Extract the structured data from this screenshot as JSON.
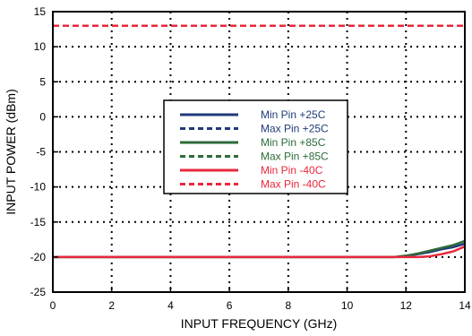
{
  "chart_data": {
    "type": "line",
    "xlabel": "INPUT FREQUENCY (GHz)",
    "ylabel": "INPUT POWER (dBm)",
    "xlim": [
      0,
      14
    ],
    "ylim": [
      -25,
      15
    ],
    "xticks": [
      0,
      2,
      4,
      6,
      8,
      10,
      12,
      14
    ],
    "yticks": [
      -25,
      -20,
      -15,
      -10,
      -5,
      0,
      5,
      10,
      15
    ],
    "grid": true,
    "grid_style": "dotted",
    "legend_position": "center",
    "series": [
      {
        "name": "Min Pin +25C",
        "color": "#1f3a7a",
        "dash": "solid",
        "x": [
          0,
          11.6,
          12.0,
          12.4,
          12.8,
          13.2,
          13.6,
          14.0
        ],
        "y": [
          -20,
          -20,
          -19.9,
          -19.6,
          -19.3,
          -18.9,
          -18.6,
          -18.1
        ]
      },
      {
        "name": "Max Pin +25C",
        "color": "#1f3a7a",
        "dash": "dashed",
        "x": [
          0,
          14
        ],
        "y": [
          13,
          13
        ]
      },
      {
        "name": "Min Pin +85C",
        "color": "#2e6b3a",
        "dash": "solid",
        "x": [
          0,
          11.6,
          12.0,
          12.4,
          12.8,
          13.2,
          13.6,
          14.0
        ],
        "y": [
          -20,
          -20,
          -19.8,
          -19.5,
          -19.1,
          -18.7,
          -18.3,
          -17.7
        ]
      },
      {
        "name": "Max Pin +85C",
        "color": "#2e6b3a",
        "dash": "dashed",
        "x": [
          0,
          14
        ],
        "y": [
          13,
          13
        ]
      },
      {
        "name": "Min Pin -40C",
        "color": "#e8283c",
        "dash": "solid",
        "x": [
          0,
          12.0,
          12.4,
          12.8,
          13.2,
          13.6,
          14.0
        ],
        "y": [
          -20,
          -20,
          -20,
          -19.9,
          -19.6,
          -19.2,
          -18.5
        ]
      },
      {
        "name": "Max Pin -40C",
        "color": "#e8283c",
        "dash": "dashed",
        "x": [
          0,
          14
        ],
        "y": [
          13,
          13
        ]
      }
    ]
  }
}
